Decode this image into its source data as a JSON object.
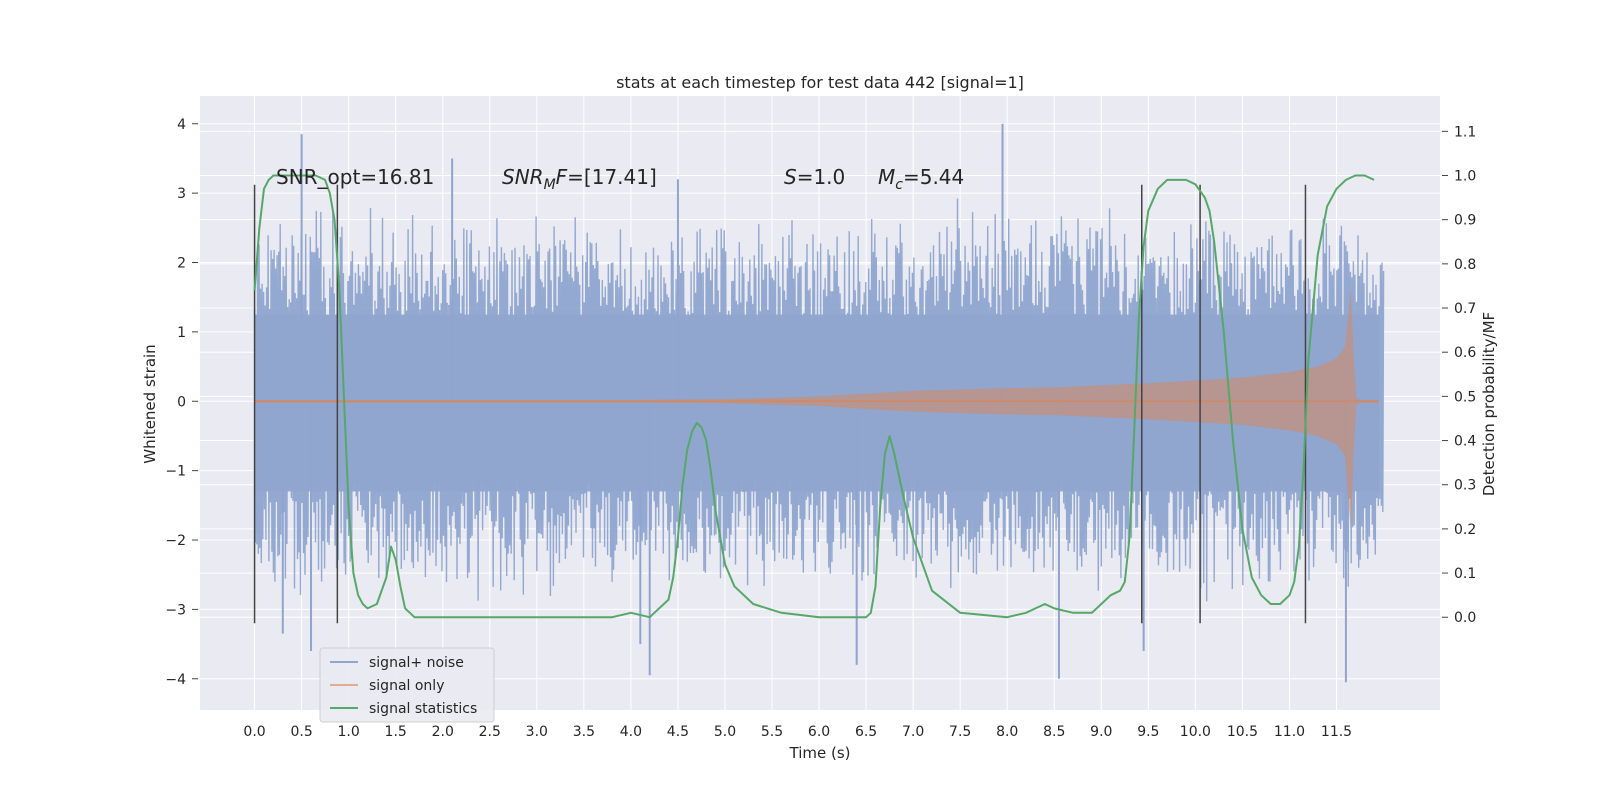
{
  "chart_data": {
    "type": "line",
    "title": "stats at each timestep for test data 442 [signal=1]",
    "xlabel": "Time (s)",
    "ylabel": "Whitened strain",
    "ylabel_right": "Detection probability/MF",
    "xlim": [
      -0.58,
      12.6
    ],
    "ylim": [
      -4.45,
      4.4
    ],
    "ylim_right": [
      -0.21,
      1.18
    ],
    "x_ticks": [
      "0.0",
      "0.5",
      "1.0",
      "1.5",
      "2.0",
      "2.5",
      "3.0",
      "3.5",
      "4.0",
      "4.5",
      "5.0",
      "5.5",
      "6.0",
      "6.5",
      "7.0",
      "7.5",
      "8.0",
      "8.5",
      "9.0",
      "9.5",
      "10.0",
      "10.5",
      "11.0",
      "11.5"
    ],
    "y_ticks": [
      "4",
      "3",
      "2",
      "1",
      "0",
      "−1",
      "−2",
      "−3",
      "−4"
    ],
    "y_ticks_right": [
      "1.1",
      "1.0",
      "0.9",
      "0.8",
      "0.7",
      "0.6",
      "0.5",
      "0.4",
      "0.3",
      "0.2",
      "0.1",
      "0.0"
    ],
    "grid": true,
    "legend_position": "lower-left",
    "annotations": {
      "snr_opt": "SNR_opt=16.81",
      "snr_mf_base": "SNR",
      "snr_mf_sub": "M",
      "snr_mf_rest": "F=[17.41]",
      "s_italic": "S",
      "s_value": "=1.0",
      "mc_italic": "M",
      "mc_sub": "c",
      "mc_value": "=5.44"
    },
    "series": [
      {
        "name": "signal+ noise",
        "color": "#8fa5cf",
        "description_free": true,
        "x_range": [
          0.0,
          12.0
        ],
        "envelope": {
          "x": [
            0.0,
            1.0,
            2.0,
            3.0,
            4.0,
            5.0,
            6.0,
            7.0,
            8.0,
            9.0,
            10.0,
            11.0,
            11.6,
            11.95
          ],
          "upper": [
            2.9,
            3.0,
            2.9,
            2.9,
            2.8,
            2.8,
            2.8,
            2.9,
            3.0,
            2.8,
            3.0,
            3.0,
            2.9,
            2.5
          ],
          "lower": [
            -2.9,
            -3.0,
            -2.9,
            -2.9,
            -2.9,
            -2.8,
            -2.9,
            -2.9,
            -2.9,
            -2.9,
            -3.0,
            -3.0,
            -3.1,
            -2.7
          ]
        },
        "spikes": [
          {
            "x": 0.5,
            "y": 3.85
          },
          {
            "x": 0.3,
            "y": -3.35
          },
          {
            "x": 0.6,
            "y": -3.6
          },
          {
            "x": 4.1,
            "y": -3.5
          },
          {
            "x": 4.2,
            "y": -3.95
          },
          {
            "x": 7.95,
            "y": 4.0
          },
          {
            "x": 8.55,
            "y": -4.0
          },
          {
            "x": 9.45,
            "y": -3.6
          },
          {
            "x": 11.6,
            "y": -4.05
          },
          {
            "x": 6.4,
            "y": -3.8
          },
          {
            "x": 2.1,
            "y": 3.5
          },
          {
            "x": 4.5,
            "y": 3.2
          }
        ]
      },
      {
        "name": "signal only",
        "color": "#dd8452",
        "x": [
          0.0,
          2.0,
          4.0,
          5.0,
          6.0,
          6.5,
          7.0,
          7.5,
          8.0,
          8.5,
          9.0,
          9.5,
          10.0,
          10.5,
          11.0,
          11.3,
          11.5,
          11.6,
          11.65,
          11.7,
          11.75,
          11.95
        ],
        "amplitude": [
          0.02,
          0.02,
          0.02,
          0.03,
          0.07,
          0.11,
          0.15,
          0.17,
          0.19,
          0.2,
          0.23,
          0.26,
          0.3,
          0.34,
          0.42,
          0.5,
          0.62,
          0.8,
          1.65,
          0.05,
          0.02,
          0.02
        ]
      },
      {
        "name": "signal statistics",
        "color": "#55a868",
        "x": [
          0.0,
          0.05,
          0.1,
          0.15,
          0.2,
          0.3,
          0.5,
          0.65,
          0.75,
          0.8,
          0.85,
          0.9,
          0.95,
          1.0,
          1.05,
          1.1,
          1.15,
          1.2,
          1.3,
          1.4,
          1.45,
          1.5,
          1.55,
          1.6,
          1.7,
          2.0,
          2.5,
          2.8,
          3.0,
          3.2,
          3.5,
          3.8,
          4.0,
          4.2,
          4.4,
          4.45,
          4.5,
          4.55,
          4.6,
          4.65,
          4.7,
          4.75,
          4.8,
          4.85,
          4.9,
          5.0,
          5.1,
          5.3,
          5.6,
          6.0,
          6.3,
          6.5,
          6.55,
          6.6,
          6.65,
          6.7,
          6.75,
          6.8,
          6.9,
          7.0,
          7.2,
          7.5,
          8.0,
          8.2,
          8.3,
          8.4,
          8.5,
          8.7,
          8.9,
          9.0,
          9.1,
          9.2,
          9.25,
          9.3,
          9.35,
          9.4,
          9.45,
          9.5,
          9.6,
          9.7,
          9.8,
          9.9,
          10.0,
          10.1,
          10.15,
          10.2,
          10.3,
          10.4,
          10.5,
          10.6,
          10.7,
          10.8,
          10.9,
          11.0,
          11.05,
          11.1,
          11.15,
          11.2,
          11.3,
          11.4,
          11.5,
          11.6,
          11.7,
          11.8,
          11.9
        ],
        "y": [
          0.74,
          0.88,
          0.97,
          0.99,
          1.0,
          1.0,
          1.0,
          1.0,
          0.99,
          0.96,
          0.9,
          0.75,
          0.5,
          0.25,
          0.1,
          0.05,
          0.03,
          0.02,
          0.03,
          0.09,
          0.16,
          0.13,
          0.07,
          0.02,
          0.0,
          0.0,
          0.0,
          0.0,
          0.0,
          0.0,
          0.0,
          0.0,
          0.01,
          0.0,
          0.04,
          0.09,
          0.18,
          0.3,
          0.38,
          0.42,
          0.44,
          0.43,
          0.4,
          0.33,
          0.24,
          0.12,
          0.07,
          0.03,
          0.01,
          0.0,
          0.0,
          0.0,
          0.01,
          0.07,
          0.25,
          0.37,
          0.41,
          0.37,
          0.27,
          0.18,
          0.06,
          0.01,
          0.0,
          0.01,
          0.02,
          0.03,
          0.02,
          0.01,
          0.01,
          0.03,
          0.05,
          0.06,
          0.08,
          0.18,
          0.42,
          0.68,
          0.84,
          0.92,
          0.97,
          0.99,
          0.99,
          0.99,
          0.98,
          0.95,
          0.92,
          0.85,
          0.65,
          0.4,
          0.2,
          0.09,
          0.05,
          0.03,
          0.03,
          0.05,
          0.08,
          0.16,
          0.34,
          0.58,
          0.82,
          0.93,
          0.97,
          0.99,
          1.0,
          1.0,
          0.99
        ]
      }
    ],
    "vertical_lines": [
      {
        "x": 0.0,
        "ymin": -3.2,
        "ymax": 3.12,
        "color": "#444444"
      },
      {
        "x": 0.88,
        "ymin": -3.2,
        "ymax": 3.12,
        "color": "#444444"
      },
      {
        "x": 9.43,
        "ymin": -3.2,
        "ymax": 3.12,
        "color": "#444444"
      },
      {
        "x": 10.05,
        "ymin": -3.2,
        "ymax": 3.12,
        "color": "#444444"
      },
      {
        "x": 11.17,
        "ymin": -3.2,
        "ymax": 3.12,
        "color": "#444444"
      }
    ]
  },
  "style": {
    "figure_bg": "#ffffff",
    "axes_bg": "#eaeaf2",
    "grid_color": "#ffffff"
  }
}
